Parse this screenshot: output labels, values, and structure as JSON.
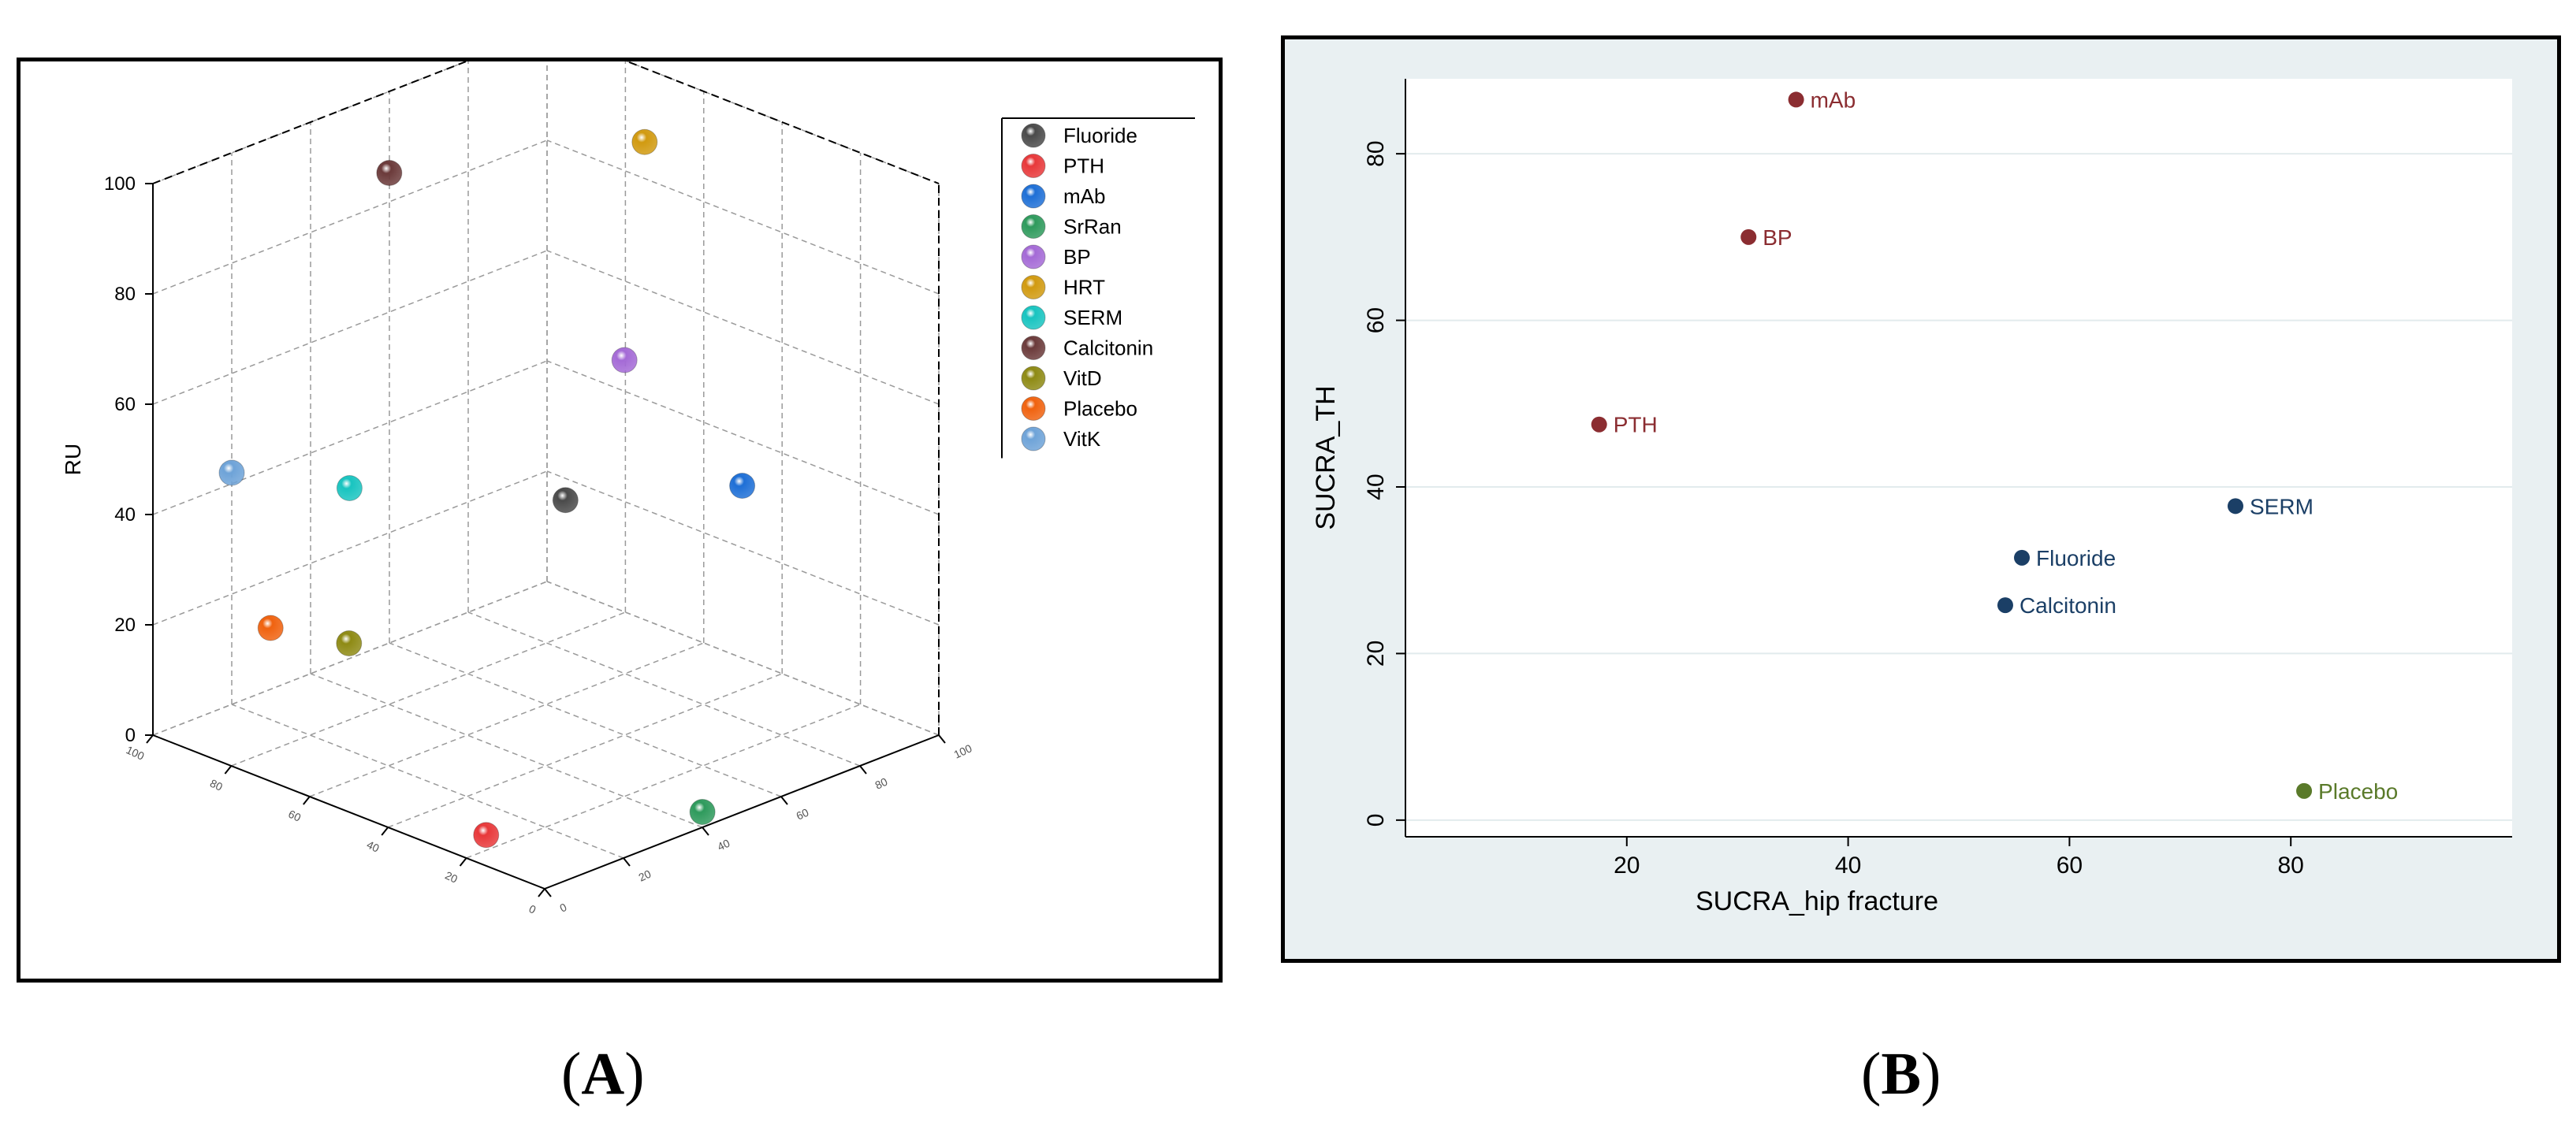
{
  "panels": {
    "a": {
      "open": "(",
      "letter": "A",
      "close": ")"
    },
    "b": {
      "open": "(",
      "letter": "B",
      "close": ")"
    }
  },
  "chart_data": [
    {
      "type": "scatter",
      "dimensions": 3,
      "zlabel": "RU",
      "zlim": [
        0,
        100
      ],
      "z_ticks": [
        "0",
        "20",
        "40",
        "60",
        "80",
        "100"
      ],
      "x_ticks": [
        "0",
        "20",
        "40",
        "60",
        "80",
        "100"
      ],
      "y_ticks": [
        "0",
        "20",
        "40",
        "60",
        "80",
        "100"
      ],
      "legend_position": "top-right",
      "series": [
        {
          "name": "Fluoride",
          "color": "#4a4a4a",
          "x": 50,
          "y": 45,
          "z": 44
        },
        {
          "name": "PTH",
          "color": "#e8383a",
          "x": 10,
          "y": 25,
          "z": 0
        },
        {
          "name": "mAb",
          "color": "#1e6fd6",
          "x": 70,
          "y": 20,
          "z": 48
        },
        {
          "name": "SrRan",
          "color": "#2e9a5c",
          "x": 45,
          "y": 5,
          "z": 0
        },
        {
          "name": "BP",
          "color": "#a46ad6",
          "x": 60,
          "y": 40,
          "z": 68
        },
        {
          "name": "HRT",
          "color": "#d19a10",
          "x": 85,
          "y": 60,
          "z": 95
        },
        {
          "name": "SERM",
          "color": "#18c4c0",
          "x": 30,
          "y": 80,
          "z": 42
        },
        {
          "name": "Calcitonin",
          "color": "#6b3a3a",
          "x": 55,
          "y": 95,
          "z": 88
        },
        {
          "name": "VitD",
          "color": "#8e8a14",
          "x": 10,
          "y": 60,
          "z": 25
        },
        {
          "name": "Placebo",
          "color": "#f0620f",
          "x": 5,
          "y": 75,
          "z": 25
        },
        {
          "name": "VitK",
          "color": "#6ea3d8",
          "x": 20,
          "y": 100,
          "z": 42
        }
      ]
    },
    {
      "type": "scatter",
      "xlabel": "SUCRA_hip fracture",
      "ylabel": "SUCRA_TH",
      "xlim": [
        0,
        100
      ],
      "ylim": [
        -2,
        89
      ],
      "x_ticks": [
        20,
        40,
        60,
        80
      ],
      "y_ticks": [
        0,
        20,
        40,
        60,
        80
      ],
      "grid": true,
      "points": [
        {
          "label": "mAb",
          "x": 35.3,
          "y": 86.5,
          "color": "#8b2d31"
        },
        {
          "label": "BP",
          "x": 31.0,
          "y": 70.0,
          "color": "#8b2d31"
        },
        {
          "label": "PTH",
          "x": 17.5,
          "y": 47.5,
          "color": "#8b2d31"
        },
        {
          "label": "SERM",
          "x": 75.0,
          "y": 37.7,
          "color": "#1b3f66"
        },
        {
          "label": "Fluoride",
          "x": 55.7,
          "y": 31.5,
          "color": "#1b3f66"
        },
        {
          "label": "Calcitonin",
          "x": 54.2,
          "y": 25.8,
          "color": "#1b3f66"
        },
        {
          "label": "Placebo",
          "x": 81.2,
          "y": 3.5,
          "color": "#5a7a2a"
        }
      ]
    }
  ]
}
